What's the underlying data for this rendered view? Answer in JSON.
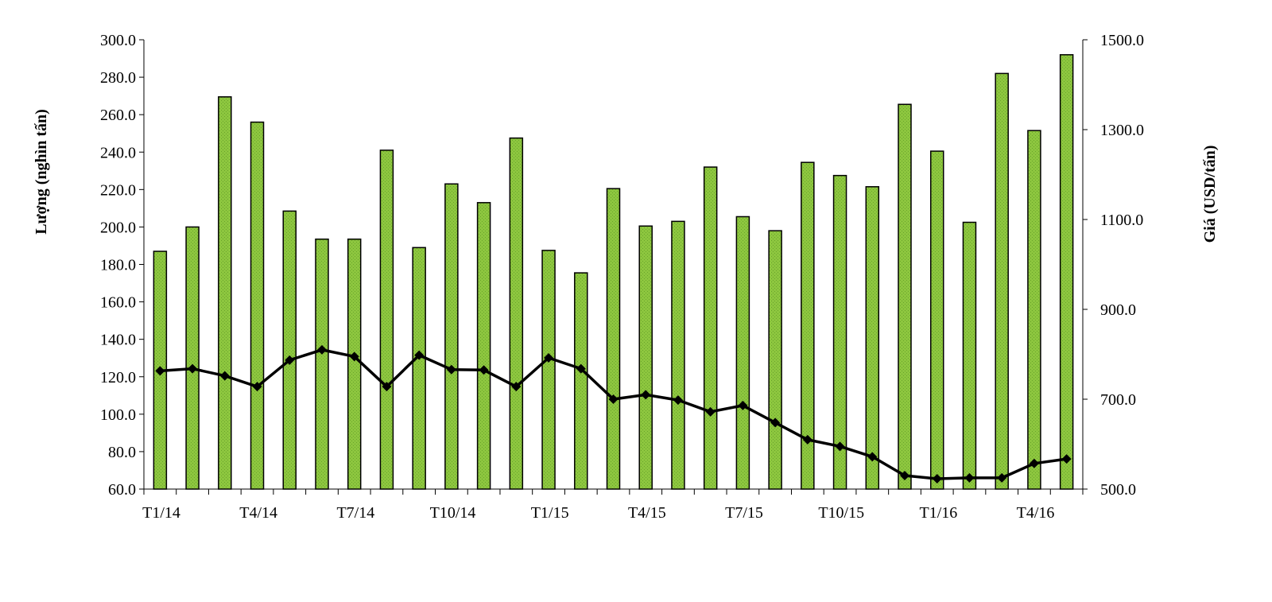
{
  "chart_data": {
    "type": "bar",
    "title": "",
    "y_left_label": "Lượng (nghìn tấn)",
    "y_right_label": "Giá (USD/tấn)",
    "ylim_left": [
      60,
      300
    ],
    "ylim_right": [
      500,
      1500
    ],
    "y_left_ticks": [
      "60.0",
      "80.0",
      "100.0",
      "120.0",
      "140.0",
      "160.0",
      "180.0",
      "200.0",
      "220.0",
      "240.0",
      "260.0",
      "280.0",
      "300.0"
    ],
    "y_right_ticks": [
      "500.0",
      "700.0",
      "900.0",
      "1100.0",
      "1300.0",
      "1500.0"
    ],
    "x_tick_labels": [
      "T1/14",
      "T4/14",
      "T7/14",
      "T10/14",
      "T1/15",
      "T4/15",
      "T7/15",
      "T10/15",
      "T1/16",
      "T4/16"
    ],
    "categories": [
      "T1/14",
      "T2/14",
      "T3/14",
      "T4/14",
      "T5/14",
      "T6/14",
      "T7/14",
      "T8/14",
      "T9/14",
      "T10/14",
      "T11/14",
      "T12/14",
      "T1/15",
      "T2/15",
      "T3/15",
      "T4/15",
      "T5/15",
      "T6/15",
      "T7/15",
      "T8/15",
      "T9/15",
      "T10/15",
      "T11/15",
      "T12/15",
      "T1/16",
      "T2/16",
      "T3/16",
      "T4/16",
      "T5/16"
    ],
    "series": [
      {
        "type": "bar",
        "axis": "left",
        "color": "#8dc63f",
        "values": [
          187,
          200,
          269.5,
          256,
          208.5,
          193.5,
          193.5,
          241,
          189,
          223,
          213,
          247.5,
          187.5,
          175.5,
          220.5,
          200.5,
          203,
          232,
          205.5,
          198,
          234.5,
          227.5,
          221.5,
          265.5,
          240.5,
          202.5,
          282,
          251.5,
          292
        ]
      },
      {
        "type": "line",
        "axis": "right",
        "color": "#000000",
        "values": [
          763,
          768,
          752,
          728,
          787,
          810,
          795,
          728,
          798,
          766,
          765,
          728,
          792,
          768,
          700,
          710,
          698,
          672,
          686,
          648,
          610,
          595,
          572,
          530,
          523,
          525,
          525,
          557,
          567
        ]
      }
    ],
    "grid": false,
    "legend": "none"
  }
}
